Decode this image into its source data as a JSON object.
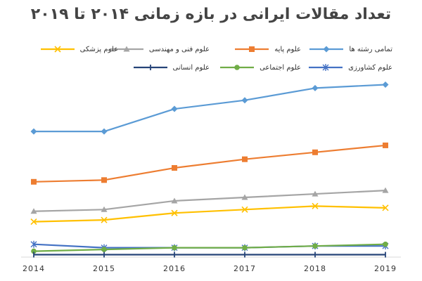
{
  "chart_data": {
    "type": "line",
    "title": "تعداد مقالات ایرانی در بازه زمانی ۲۰۱۴ تا ۲۰۱۹",
    "xlabel": "",
    "ylabel": "",
    "x": [
      "2014",
      "2015",
      "2016",
      "2017",
      "2018",
      "2019"
    ],
    "ylim": [
      0,
      100
    ],
    "grid": false,
    "legend_position": "top",
    "series": [
      {
        "name": "تمامی رشته ها",
        "color": "#5b9bd5",
        "marker": "diamond",
        "values": [
          72,
          72,
          85,
          90,
          97,
          99
        ]
      },
      {
        "name": "علوم پایه",
        "color": "#ed7d31",
        "marker": "square",
        "values": [
          43,
          44,
          51,
          56,
          60,
          64
        ]
      },
      {
        "name": "علوم فنی و مهندسی",
        "color": "#a5a5a5",
        "marker": "triangle",
        "values": [
          26,
          27,
          32,
          34,
          36,
          38
        ]
      },
      {
        "name": "علوم پزشکی",
        "color": "#ffc000",
        "marker": "x",
        "values": [
          20,
          21,
          25,
          27,
          29,
          28
        ]
      },
      {
        "name": "علوم کشاورزی",
        "color": "#4472c4",
        "marker": "star",
        "values": [
          7,
          5,
          5,
          5,
          6,
          6
        ]
      },
      {
        "name": "علوم اجتماعی",
        "color": "#70ad47",
        "marker": "circle",
        "values": [
          3,
          4,
          5,
          5,
          6,
          7
        ]
      },
      {
        "name": "علوم انسانی",
        "color": "#264478",
        "marker": "dash",
        "values": [
          1,
          1,
          1,
          1,
          1,
          1
        ]
      }
    ]
  }
}
